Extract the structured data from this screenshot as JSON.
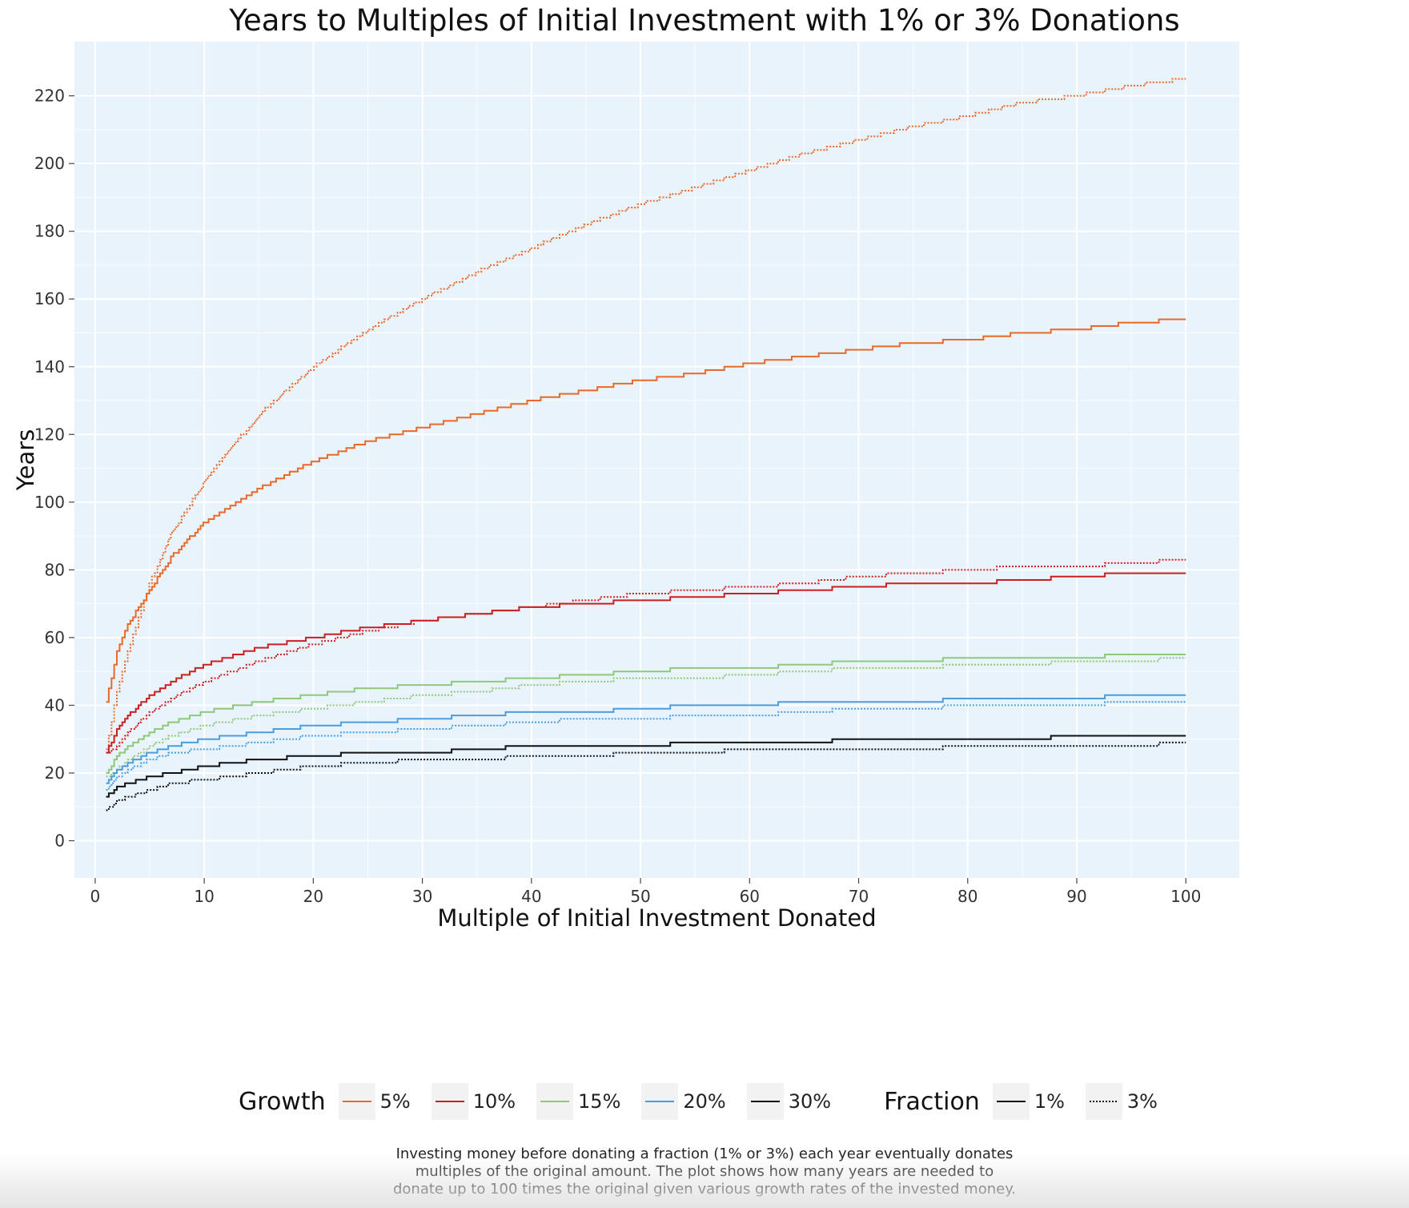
{
  "chart_data": {
    "type": "line",
    "title": "Years to Multiples of Initial Investment with 1% or 3% Donations",
    "xlabel": "Multiple of Initial Investment Donated",
    "ylabel": "Years",
    "xlim": [
      -1.9,
      104.9
    ],
    "ylim": [
      -11,
      236
    ],
    "x_ticks": [
      0,
      10,
      20,
      30,
      40,
      50,
      60,
      70,
      80,
      90,
      100
    ],
    "y_ticks": [
      0,
      20,
      40,
      60,
      80,
      100,
      120,
      140,
      160,
      180,
      200,
      220
    ],
    "x_tick_labels": [
      "0",
      "10",
      "20",
      "30",
      "40",
      "50",
      "60",
      "70",
      "80",
      "90",
      "100"
    ],
    "y_tick_labels": [
      "0",
      "20",
      "40",
      "60",
      "80",
      "100",
      "120",
      "140",
      "160",
      "180",
      "200",
      "220"
    ],
    "grid": true,
    "background": "#e8f3fc",
    "legend_position": "bottom",
    "legend": {
      "growth_title": "Growth",
      "growth_labels": [
        "5%",
        "10%",
        "15%",
        "20%",
        "30%"
      ],
      "fraction_title": "Fraction",
      "fraction_labels": [
        "1%",
        "3%"
      ]
    },
    "caption": [
      "Investing money before donating a fraction (1% or 3%) each year eventually donates",
      "multiples of the original amount. The plot shows how many years are needed to",
      "donate up to 100 times the original given various growth rates of the invested money."
    ],
    "x": [
      1,
      2,
      3,
      5,
      7,
      10,
      15,
      20,
      25,
      30,
      35,
      40,
      45,
      50,
      55,
      60,
      65,
      70,
      75,
      80,
      85,
      90,
      95,
      100
    ],
    "series": [
      {
        "growth": "5%",
        "fraction": "1%",
        "color": "#e8692a",
        "dash": "solid",
        "values": [
          41,
          56,
          64,
          74,
          84,
          94,
          104,
          112,
          118,
          122,
          126,
          130,
          133,
          136,
          138,
          141,
          143,
          145,
          147,
          148,
          150,
          151,
          153,
          154
        ]
      },
      {
        "growth": "5%",
        "fraction": "3%",
        "color": "#e8692a",
        "dash": "dotted",
        "values": [
          27,
          44,
          56,
          76,
          91,
          106,
          126,
          140,
          151,
          160,
          168,
          175,
          182,
          188,
          193,
          198,
          203,
          207,
          211,
          214,
          218,
          220,
          223,
          225
        ]
      },
      {
        "growth": "10%",
        "fraction": "1%",
        "color": "#cc1f1f",
        "dash": "solid",
        "values": [
          26,
          33,
          37,
          43,
          47,
          52,
          57,
          60,
          63,
          65,
          67,
          69,
          70,
          71,
          72,
          73,
          74,
          75,
          76,
          76,
          77,
          78,
          79,
          79
        ]
      },
      {
        "growth": "10%",
        "fraction": "3%",
        "color": "#cc1f1f",
        "dash": "dotted",
        "values": [
          26,
          28,
          32,
          38,
          42,
          47,
          53,
          58,
          62,
          65,
          67,
          69,
          71,
          73,
          74,
          75,
          76,
          78,
          79,
          80,
          81,
          81,
          82,
          83
        ]
      },
      {
        "growth": "15%",
        "fraction": "1%",
        "color": "#8ec97a",
        "dash": "solid",
        "values": [
          20,
          25,
          28,
          32,
          35,
          38,
          41,
          43,
          45,
          46,
          47,
          48,
          49,
          50,
          51,
          51,
          52,
          53,
          53,
          54,
          54,
          54,
          55,
          55
        ]
      },
      {
        "growth": "15%",
        "fraction": "3%",
        "color": "#8ec97a",
        "dash": "dotted",
        "values": [
          19,
          21,
          24,
          28,
          31,
          34,
          37,
          39,
          41,
          43,
          44,
          46,
          47,
          48,
          48,
          49,
          50,
          51,
          51,
          52,
          52,
          53,
          53,
          54
        ]
      },
      {
        "growth": "20%",
        "fraction": "1%",
        "color": "#4a9ee0",
        "dash": "solid",
        "values": [
          17,
          21,
          23,
          26,
          28,
          30,
          32,
          34,
          35,
          36,
          37,
          38,
          38,
          39,
          40,
          40,
          41,
          41,
          41,
          42,
          42,
          42,
          43,
          43
        ]
      },
      {
        "growth": "20%",
        "fraction": "3%",
        "color": "#4a9ee0",
        "dash": "dotted",
        "values": [
          15,
          19,
          21,
          24,
          26,
          27,
          29,
          31,
          32,
          33,
          34,
          35,
          36,
          36,
          37,
          37,
          38,
          39,
          39,
          40,
          40,
          40,
          41,
          41
        ]
      },
      {
        "growth": "30%",
        "fraction": "1%",
        "color": "#111111",
        "dash": "solid",
        "values": [
          13,
          16,
          17,
          19,
          20,
          22,
          24,
          25,
          26,
          26,
          27,
          28,
          28,
          28,
          29,
          29,
          29,
          30,
          30,
          30,
          30,
          31,
          31,
          31
        ]
      },
      {
        "growth": "30%",
        "fraction": "3%",
        "color": "#111111",
        "dash": "dotted",
        "values": [
          9,
          12,
          13,
          15,
          17,
          18,
          20,
          22,
          23,
          24,
          24,
          25,
          25,
          26,
          26,
          27,
          27,
          27,
          27,
          28,
          28,
          28,
          28,
          29
        ]
      }
    ]
  }
}
